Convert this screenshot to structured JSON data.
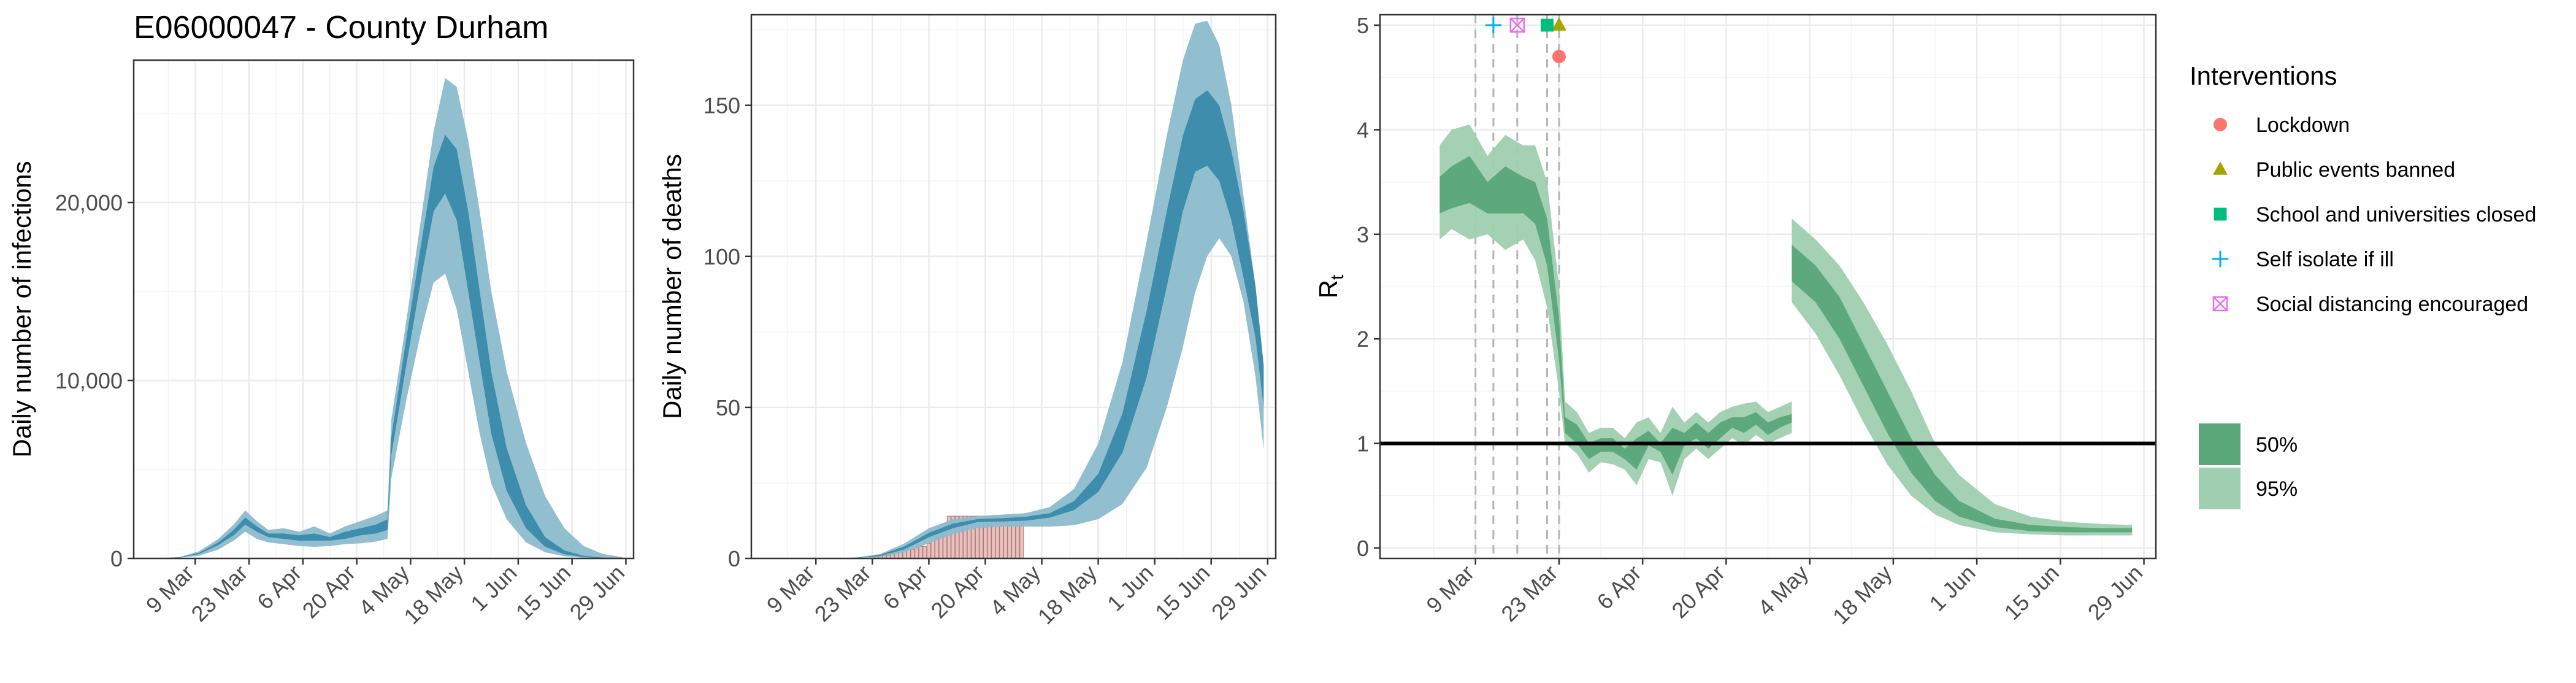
{
  "colors": {
    "blue_95": "#8cbcce",
    "blue_50": "#3a8aaa",
    "green_95": "#9fcfb0",
    "green_50": "#5aa77a",
    "bars": "#e8c0bd",
    "bar_stroke": "#b07a76",
    "grid": "#ebebeb",
    "lockdown": "#f8766d",
    "events": "#a3a500",
    "school": "#00bf7d",
    "isolate": "#00b0f6",
    "distancing": "#e76bf3"
  },
  "chart_data": [
    {
      "id": "infections",
      "type": "area",
      "title": "E06000047 - County Durham",
      "xlabel": "",
      "ylabel": "Daily number of infections",
      "xlim": [
        "2020-02-22",
        "2020-07-01"
      ],
      "ylim": [
        0,
        28000
      ],
      "y_ticks": [
        0,
        10000,
        20000
      ],
      "y_tick_labels": [
        "0",
        "10,000",
        "20,000"
      ],
      "x_ticks": [
        "2020-03-09",
        "2020-03-23",
        "2020-04-06",
        "2020-04-20",
        "2020-05-04",
        "2020-05-18",
        "2020-06-01",
        "2020-06-15",
        "2020-06-29"
      ],
      "x_tick_labels": [
        "9 Mar",
        "23 Mar",
        "6 Apr",
        "20 Apr",
        "4 May",
        "18 May",
        "1 Jun",
        "15 Jun",
        "29 Jun"
      ],
      "grid": true,
      "series": [
        {
          "band": "95%",
          "x": [
            "2020-02-27",
            "2020-03-05",
            "2020-03-10",
            "2020-03-15",
            "2020-03-19",
            "2020-03-22",
            "2020-03-25",
            "2020-03-28",
            "2020-04-01",
            "2020-04-05",
            "2020-04-09",
            "2020-04-13",
            "2020-04-17",
            "2020-04-21",
            "2020-04-25",
            "2020-04-28",
            "2020-04-29",
            "2020-05-03",
            "2020-05-07",
            "2020-05-10",
            "2020-05-13",
            "2020-05-16",
            "2020-05-19",
            "2020-05-22",
            "2020-05-25",
            "2020-05-29",
            "2020-06-03",
            "2020-06-08",
            "2020-06-13",
            "2020-06-18",
            "2020-06-23",
            "2020-06-28"
          ],
          "lower": [
            0,
            30,
            150,
            500,
            1000,
            1500,
            1100,
            900,
            800,
            700,
            650,
            700,
            800,
            850,
            950,
            1100,
            4500,
            9000,
            13000,
            15500,
            16000,
            14000,
            10500,
            7000,
            4200,
            2200,
            900,
            350,
            120,
            40,
            10,
            0
          ],
          "upper": [
            0,
            80,
            400,
            1100,
            1900,
            2700,
            2100,
            1600,
            1700,
            1500,
            1800,
            1400,
            1800,
            2100,
            2400,
            2700,
            7800,
            13500,
            19500,
            24000,
            27000,
            26500,
            23500,
            19500,
            15000,
            10500,
            6500,
            3500,
            1700,
            700,
            250,
            80
          ]
        },
        {
          "band": "50%",
          "x": [
            "2020-02-27",
            "2020-03-05",
            "2020-03-10",
            "2020-03-15",
            "2020-03-19",
            "2020-03-22",
            "2020-03-25",
            "2020-03-28",
            "2020-04-01",
            "2020-04-05",
            "2020-04-09",
            "2020-04-13",
            "2020-04-17",
            "2020-04-21",
            "2020-04-25",
            "2020-04-28",
            "2020-04-29",
            "2020-05-03",
            "2020-05-07",
            "2020-05-10",
            "2020-05-13",
            "2020-05-16",
            "2020-05-19",
            "2020-05-22",
            "2020-05-25",
            "2020-05-29",
            "2020-06-03",
            "2020-06-08",
            "2020-06-13",
            "2020-06-18",
            "2020-06-23",
            "2020-06-28"
          ],
          "lower": [
            0,
            40,
            250,
            750,
            1300,
            1900,
            1500,
            1200,
            1100,
            1000,
            1000,
            1000,
            1100,
            1300,
            1400,
            1600,
            5800,
            11000,
            16000,
            19500,
            20500,
            19000,
            15000,
            11000,
            7000,
            3800,
            1700,
            650,
            230,
            80,
            20,
            5
          ],
          "upper": [
            0,
            60,
            320,
            900,
            1600,
            2300,
            1800,
            1400,
            1400,
            1300,
            1400,
            1200,
            1500,
            1700,
            1900,
            2200,
            6800,
            12500,
            18000,
            22000,
            23800,
            23000,
            19500,
            15000,
            10500,
            6200,
            3000,
            1200,
            450,
            150,
            40,
            10
          ]
        }
      ]
    },
    {
      "id": "deaths",
      "type": "bar",
      "title": "",
      "xlabel": "",
      "ylabel": "Daily number of deaths",
      "xlim": [
        "2020-02-22",
        "2020-07-01"
      ],
      "ylim": [
        0,
        180
      ],
      "y_ticks": [
        0,
        50,
        100,
        150
      ],
      "y_tick_labels": [
        "0",
        "50",
        "100",
        "150"
      ],
      "x_ticks": [
        "2020-03-09",
        "2020-03-23",
        "2020-04-06",
        "2020-04-20",
        "2020-05-04",
        "2020-05-18",
        "2020-06-01",
        "2020-06-15",
        "2020-06-29"
      ],
      "x_tick_labels": [
        "9 Mar",
        "23 Mar",
        "6 Apr",
        "20 Apr",
        "4 May",
        "18 May",
        "1 Jun",
        "15 Jun",
        "29 Jun"
      ],
      "grid": true,
      "bars": {
        "x": [
          "2020-03-23",
          "2020-03-24",
          "2020-03-25",
          "2020-03-26",
          "2020-03-27",
          "2020-03-28",
          "2020-03-29",
          "2020-03-30",
          "2020-03-31",
          "2020-04-01",
          "2020-04-02",
          "2020-04-03",
          "2020-04-04",
          "2020-04-05",
          "2020-04-06",
          "2020-04-07",
          "2020-04-08",
          "2020-04-09",
          "2020-04-10",
          "2020-04-11",
          "2020-04-12",
          "2020-04-13",
          "2020-04-14",
          "2020-04-15",
          "2020-04-16",
          "2020-04-17",
          "2020-04-18",
          "2020-04-19",
          "2020-04-20",
          "2020-04-21",
          "2020-04-22",
          "2020-04-23",
          "2020-04-24",
          "2020-04-25",
          "2020-04-26",
          "2020-04-27",
          "2020-04-28",
          "2020-04-29"
        ],
        "values": [
          0.5,
          0.5,
          1,
          1,
          1,
          1.5,
          2,
          2,
          2.5,
          3,
          3,
          3.5,
          4,
          4,
          5,
          6,
          7,
          8,
          9,
          14,
          14,
          14,
          14,
          14,
          14,
          14,
          14,
          14,
          14,
          14,
          14,
          14,
          14,
          14,
          14,
          14,
          14,
          14
        ]
      },
      "series": [
        {
          "band": "95%",
          "x": [
            "2020-03-05",
            "2020-03-12",
            "2020-03-19",
            "2020-03-25",
            "2020-03-31",
            "2020-04-06",
            "2020-04-12",
            "2020-04-18",
            "2020-04-24",
            "2020-04-30",
            "2020-05-06",
            "2020-05-12",
            "2020-05-18",
            "2020-05-24",
            "2020-05-30",
            "2020-06-04",
            "2020-06-08",
            "2020-06-11",
            "2020-06-14",
            "2020-06-17",
            "2020-06-20",
            "2020-06-23",
            "2020-06-26",
            "2020-06-28"
          ],
          "lower": [
            0,
            0,
            0.1,
            0.5,
            2,
            5,
            8,
            10,
            10.5,
            10.5,
            10.5,
            11,
            13,
            18,
            30,
            50,
            70,
            88,
            100,
            106,
            100,
            85,
            60,
            36
          ],
          "upper": [
            0,
            0,
            0.3,
            1.5,
            5,
            10,
            13,
            14,
            14.5,
            15,
            17,
            23,
            38,
            65,
            105,
            140,
            165,
            177,
            178,
            170,
            150,
            120,
            90,
            64
          ]
        },
        {
          "band": "50%",
          "x": [
            "2020-03-05",
            "2020-03-12",
            "2020-03-19",
            "2020-03-25",
            "2020-03-31",
            "2020-04-06",
            "2020-04-12",
            "2020-04-18",
            "2020-04-24",
            "2020-04-30",
            "2020-05-06",
            "2020-05-12",
            "2020-05-18",
            "2020-05-24",
            "2020-05-30",
            "2020-06-04",
            "2020-06-08",
            "2020-06-11",
            "2020-06-14",
            "2020-06-17",
            "2020-06-20",
            "2020-06-23",
            "2020-06-26",
            "2020-06-28"
          ],
          "lower": [
            0,
            0,
            0.2,
            0.8,
            3,
            7,
            10,
            12,
            12.2,
            12.5,
            13.5,
            16,
            22,
            35,
            60,
            90,
            115,
            128,
            130,
            125,
            112,
            93,
            73,
            50
          ],
          "upper": [
            0,
            0,
            0.25,
            1.2,
            4,
            8.5,
            11.5,
            13,
            13.3,
            13.8,
            15,
            19,
            28,
            48,
            82,
            115,
            140,
            152,
            155,
            150,
            135,
            115,
            90,
            64
          ]
        }
      ]
    },
    {
      "id": "rt",
      "type": "area",
      "title": "",
      "xlabel": "",
      "ylabel": "R",
      "ylabel_subscript": "t",
      "xlim": [
        "2020-02-22",
        "2020-07-01"
      ],
      "ylim": [
        -0.1,
        5.1
      ],
      "y_ticks": [
        0,
        1,
        2,
        3,
        4,
        5
      ],
      "y_tick_labels": [
        "0",
        "1",
        "2",
        "3",
        "4",
        "5"
      ],
      "x_ticks": [
        "2020-03-09",
        "2020-03-23",
        "2020-04-06",
        "2020-04-20",
        "2020-05-04",
        "2020-05-18",
        "2020-06-01",
        "2020-06-15",
        "2020-06-29"
      ],
      "x_tick_labels": [
        "9 Mar",
        "23 Mar",
        "6 Apr",
        "20 Apr",
        "4 May",
        "18 May",
        "1 Jun",
        "15 Jun",
        "29 Jun"
      ],
      "grid": true,
      "reference_line": 1,
      "interventions": [
        {
          "label": "Lockdown",
          "date": "2020-03-23",
          "value": 4.7,
          "shape": "circle",
          "color_key": "lockdown"
        },
        {
          "label": "Public events banned",
          "date": "2020-03-23",
          "value": 5.0,
          "shape": "triangle",
          "color_key": "events"
        },
        {
          "label": "School and universities closed",
          "date": "2020-03-21",
          "value": 5.0,
          "shape": "square",
          "color_key": "school"
        },
        {
          "label": "Self isolate if ill",
          "date": "2020-03-12",
          "value": 5.0,
          "shape": "plus",
          "color_key": "isolate"
        },
        {
          "label": "Social distancing encouraged",
          "date": "2020-03-16",
          "value": 5.0,
          "shape": "boxx",
          "color_key": "distancing"
        }
      ],
      "vlines": [
        "2020-03-09",
        "2020-03-12",
        "2020-03-16",
        "2020-03-21",
        "2020-03-23"
      ],
      "series": [
        {
          "band": "95%",
          "x": [
            "2020-03-03",
            "2020-03-05",
            "2020-03-08",
            "2020-03-11",
            "2020-03-14",
            "2020-03-17",
            "2020-03-19",
            "2020-03-21",
            "2020-03-23",
            "2020-03-24",
            "2020-03-26",
            "2020-03-28",
            "2020-03-30",
            "2020-04-01",
            "2020-04-03",
            "2020-04-05",
            "2020-04-07",
            "2020-04-09",
            "2020-04-11",
            "2020-04-13",
            "2020-04-15",
            "2020-04-17",
            "2020-04-19",
            "2020-04-21",
            "2020-04-23",
            "2020-04-25",
            "2020-04-27",
            "2020-04-29",
            "2020-05-01",
            "2020-05-01",
            "2020-05-05",
            "2020-05-09",
            "2020-05-13",
            "2020-05-17",
            "2020-05-21",
            "2020-05-25",
            "2020-05-29",
            "2020-06-04",
            "2020-06-10",
            "2020-06-16",
            "2020-06-22",
            "2020-06-27"
          ],
          "lower": [
            2.95,
            3.05,
            2.95,
            3.0,
            2.85,
            2.95,
            2.75,
            2.3,
            1.5,
            1.0,
            0.9,
            0.72,
            0.82,
            0.8,
            0.75,
            0.6,
            0.85,
            0.82,
            0.5,
            0.85,
            0.95,
            0.85,
            0.95,
            1.05,
            0.98,
            1.08,
            1.0,
            1.05,
            1.1,
            2.35,
            2.05,
            1.65,
            1.2,
            0.8,
            0.5,
            0.32,
            0.22,
            0.15,
            0.13,
            0.12,
            0.12,
            0.12
          ],
          "upper": [
            3.85,
            4.0,
            4.05,
            3.75,
            3.95,
            3.85,
            3.85,
            3.5,
            2.5,
            1.4,
            1.3,
            1.1,
            1.15,
            1.15,
            1.05,
            1.2,
            1.25,
            1.1,
            1.35,
            1.2,
            1.3,
            1.2,
            1.3,
            1.35,
            1.38,
            1.4,
            1.3,
            1.35,
            1.4,
            3.15,
            2.95,
            2.7,
            2.35,
            1.95,
            1.5,
            1.0,
            0.7,
            0.42,
            0.3,
            0.25,
            0.23,
            0.22
          ]
        },
        {
          "band": "50%",
          "x": [
            "2020-03-03",
            "2020-03-05",
            "2020-03-08",
            "2020-03-11",
            "2020-03-14",
            "2020-03-17",
            "2020-03-19",
            "2020-03-21",
            "2020-03-23",
            "2020-03-24",
            "2020-03-26",
            "2020-03-28",
            "2020-03-30",
            "2020-04-01",
            "2020-04-03",
            "2020-04-05",
            "2020-04-07",
            "2020-04-09",
            "2020-04-11",
            "2020-04-13",
            "2020-04-15",
            "2020-04-17",
            "2020-04-19",
            "2020-04-21",
            "2020-04-23",
            "2020-04-25",
            "2020-04-27",
            "2020-04-29",
            "2020-05-01",
            "2020-05-01",
            "2020-05-05",
            "2020-05-09",
            "2020-05-13",
            "2020-05-17",
            "2020-05-21",
            "2020-05-25",
            "2020-05-29",
            "2020-06-04",
            "2020-06-10",
            "2020-06-16",
            "2020-06-22",
            "2020-06-27"
          ],
          "lower": [
            3.2,
            3.25,
            3.3,
            3.2,
            3.2,
            3.2,
            3.1,
            2.7,
            1.8,
            1.1,
            1.0,
            0.85,
            0.92,
            0.92,
            0.85,
            0.75,
            0.98,
            0.92,
            0.7,
            0.98,
            1.05,
            0.95,
            1.05,
            1.15,
            1.1,
            1.18,
            1.08,
            1.15,
            1.2,
            2.55,
            2.35,
            2.0,
            1.55,
            1.1,
            0.72,
            0.45,
            0.3,
            0.2,
            0.16,
            0.15,
            0.15,
            0.15
          ],
          "upper": [
            3.55,
            3.65,
            3.75,
            3.5,
            3.65,
            3.55,
            3.5,
            3.15,
            2.2,
            1.25,
            1.18,
            1.0,
            1.05,
            1.05,
            0.95,
            1.05,
            1.12,
            1.0,
            1.15,
            1.1,
            1.2,
            1.1,
            1.2,
            1.25,
            1.25,
            1.3,
            1.2,
            1.25,
            1.28,
            2.9,
            2.7,
            2.4,
            1.95,
            1.5,
            1.05,
            0.7,
            0.45,
            0.28,
            0.22,
            0.2,
            0.19,
            0.19
          ]
        }
      ]
    }
  ],
  "legend_interventions": {
    "title": "Interventions",
    "items": [
      {
        "label": "Lockdown",
        "shape": "circle",
        "color_key": "lockdown"
      },
      {
        "label": "Public events banned",
        "shape": "triangle",
        "color_key": "events"
      },
      {
        "label": "School and universities closed",
        "shape": "square",
        "color_key": "school"
      },
      {
        "label": "Self isolate if ill",
        "shape": "plus",
        "color_key": "isolate"
      },
      {
        "label": "Social distancing encouraged",
        "shape": "boxx",
        "color_key": "distancing"
      }
    ]
  },
  "legend_bands": {
    "items": [
      {
        "label": "50%",
        "color_key": "green_50"
      },
      {
        "label": "95%",
        "color_key": "green_95"
      }
    ]
  }
}
